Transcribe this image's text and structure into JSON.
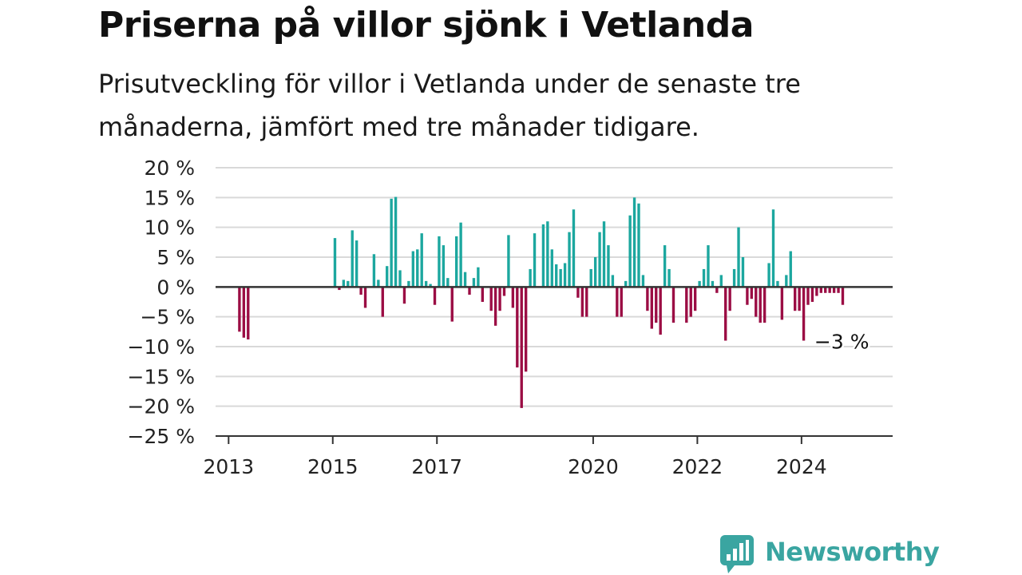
{
  "header": {
    "title": "Priserna på villor sjönk i Vetlanda",
    "subtitle": "Prisutveckling för villor i Vetlanda under de senaste tre månaderna, jämfört med tre månader tidigare."
  },
  "brand": {
    "name": "Newsworthy",
    "color": "#3aa5a1"
  },
  "colors": {
    "positive": "#1ca79f",
    "negative": "#9b0d44",
    "grid": "#d9d9d9",
    "axis": "#333333"
  },
  "chart_data": {
    "type": "bar",
    "title": "Priserna på villor sjönk i Vetlanda",
    "subtitle": "Prisutveckling för villor i Vetlanda under de senaste tre månaderna, jämfört med tre månader tidigare.",
    "xlabel": "",
    "ylabel": "",
    "ylim": [
      -25,
      20
    ],
    "yticks": [
      20,
      15,
      10,
      5,
      0,
      -5,
      -10,
      -15,
      -20,
      -25
    ],
    "ytick_labels": [
      "20 %",
      "15 %",
      "10 %",
      "5 %",
      "0 %",
      "−5 %",
      "−10 %",
      "−15 %",
      "−20 %",
      "−25 %"
    ],
    "xlim": [
      "2012-10",
      "2025-10"
    ],
    "xticks": [
      "2013-01",
      "2015-01",
      "2017-01",
      "2020-01",
      "2022-01",
      "2024-01"
    ],
    "xtick_labels": [
      "2013",
      "2015",
      "2017",
      "2020",
      "2022",
      "2024"
    ],
    "grid": true,
    "series": [
      {
        "x": [
          "2013-03",
          "2013-04",
          "2013-05",
          "2015-01",
          "2015-02",
          "2015-03",
          "2015-04",
          "2015-05",
          "2015-06",
          "2015-07",
          "2015-08",
          "2015-10",
          "2015-11",
          "2015-12",
          "2016-01",
          "2016-02",
          "2016-03",
          "2016-04",
          "2016-05",
          "2016-06",
          "2016-07",
          "2016-08",
          "2016-09",
          "2016-10",
          "2016-11",
          "2016-12",
          "2017-01",
          "2017-02",
          "2017-03",
          "2017-04",
          "2017-05",
          "2017-06",
          "2017-07",
          "2017-08",
          "2017-09",
          "2017-10",
          "2017-11",
          "2018-01",
          "2018-02",
          "2018-03",
          "2018-04",
          "2018-05",
          "2018-06",
          "2018-07",
          "2018-08",
          "2018-09",
          "2018-10",
          "2018-11",
          "2019-01",
          "2019-02",
          "2019-03",
          "2019-04",
          "2019-05",
          "2019-06",
          "2019-07",
          "2019-08",
          "2019-09",
          "2019-10",
          "2019-11",
          "2019-12",
          "2020-01",
          "2020-02",
          "2020-03",
          "2020-04",
          "2020-05",
          "2020-06",
          "2020-07",
          "2020-08",
          "2020-09",
          "2020-10",
          "2020-11",
          "2020-12",
          "2021-01",
          "2021-02",
          "2021-03",
          "2021-04",
          "2021-05",
          "2021-06",
          "2021-07",
          "2021-10",
          "2021-11",
          "2021-12",
          "2022-01",
          "2022-02",
          "2022-03",
          "2022-04",
          "2022-05",
          "2022-06",
          "2022-07",
          "2022-08",
          "2022-09",
          "2022-10",
          "2022-11",
          "2022-12",
          "2023-01",
          "2023-02",
          "2023-03",
          "2023-04",
          "2023-05",
          "2023-06",
          "2023-07",
          "2023-08",
          "2023-09",
          "2023-10",
          "2023-11",
          "2023-12",
          "2024-01",
          "2024-02",
          "2024-03",
          "2024-04",
          "2024-05",
          "2024-06",
          "2024-07",
          "2024-08",
          "2024-09",
          "2024-10"
        ],
        "values": [
          -7.5,
          -8.5,
          -8.8,
          8.2,
          -0.5,
          1.2,
          1.0,
          9.5,
          7.8,
          -1.3,
          -3.5,
          5.5,
          1.2,
          -5.0,
          3.5,
          14.8,
          15.1,
          2.8,
          -2.8,
          1.0,
          6.0,
          6.3,
          9.0,
          1.0,
          0.5,
          -3.0,
          8.5,
          7.0,
          1.5,
          -5.8,
          8.5,
          10.8,
          2.5,
          -1.3,
          1.5,
          3.3,
          -2.5,
          -4.0,
          -6.5,
          -4.0,
          -1.5,
          8.7,
          -3.5,
          -13.5,
          -20.3,
          -14.2,
          3.0,
          9.0,
          10.5,
          11.0,
          6.3,
          3.8,
          3.0,
          4.0,
          9.2,
          13.0,
          -1.8,
          -5.0,
          -5.0,
          3.0,
          5.0,
          9.2,
          11.0,
          7.0,
          2.0,
          -5.0,
          -5.0,
          1.0,
          12.0,
          15.0,
          14.0,
          2.0,
          -4.0,
          -7.0,
          -6.0,
          -8.0,
          7.0,
          3.0,
          -6.0,
          -6.0,
          -5.0,
          -4.0,
          1.0,
          3.0,
          7.0,
          1.0,
          -1.0,
          2.0,
          -9.0,
          -4.0,
          3.0,
          10.0,
          5.0,
          -3.0,
          -2.0,
          -5.0,
          -6.0,
          -6.0,
          4.0,
          13.0,
          1.0,
          -5.5,
          2.0,
          6.0,
          -4.0,
          -4.0,
          -9.0,
          -3.0,
          -2.5,
          -1.5,
          -1.0,
          -1.0,
          -1.0,
          -1.0,
          -1.0,
          -3.0
        ]
      }
    ],
    "annotations": [
      {
        "x": "2024-10",
        "y": -3,
        "text": "−3 %"
      }
    ]
  }
}
